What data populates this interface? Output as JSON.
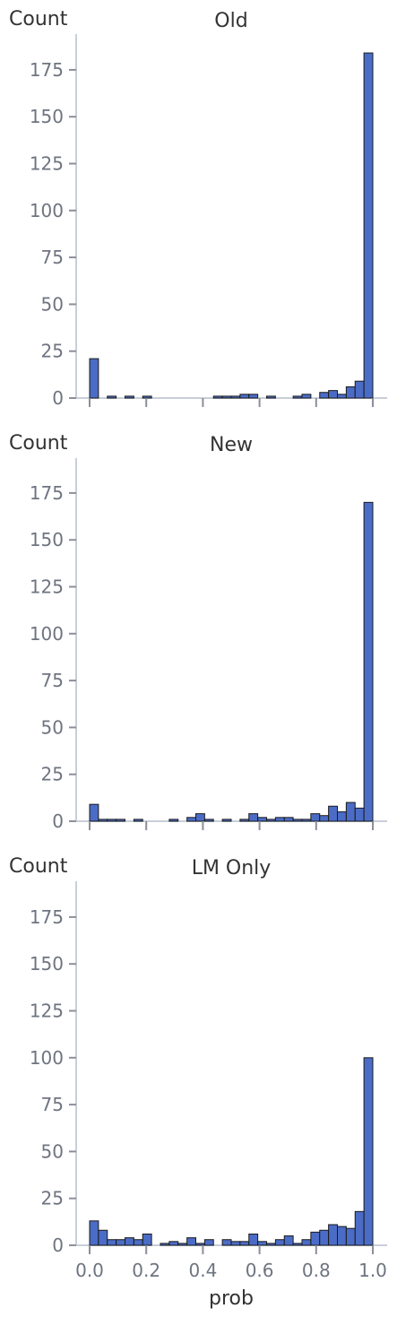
{
  "figure": {
    "colors": {
      "bar_fill": "#4b6cc6",
      "bar_edge": "#1a1a1a",
      "axis": "#c8ced8",
      "tick": "#8a8f9a",
      "tick_label": "#6e7480",
      "title": "#333333"
    }
  },
  "chart_data": [
    {
      "type": "bar",
      "title": "Old",
      "ylabel": "Count",
      "xlabel": "",
      "show_x_tick_labels": false,
      "bin_width": 0.03125,
      "x_range": [
        0,
        1
      ],
      "ylim": [
        0,
        192
      ],
      "y_ticks": [
        "0",
        "25",
        "50",
        "75",
        "100",
        "125",
        "150",
        "175"
      ],
      "x_ticks": [
        "0.0",
        "0.2",
        "0.4",
        "0.6",
        "0.8",
        "1.0"
      ],
      "values": [
        21,
        0,
        1,
        0,
        1,
        0,
        1,
        0,
        0,
        0,
        0,
        0,
        0,
        0,
        1,
        1,
        1,
        2,
        2,
        0,
        1,
        0,
        0,
        1,
        2,
        0,
        3,
        4,
        2,
        6,
        9,
        184
      ]
    },
    {
      "type": "bar",
      "title": "New",
      "ylabel": "Count",
      "xlabel": "",
      "show_x_tick_labels": false,
      "bin_width": 0.03125,
      "x_range": [
        0,
        1
      ],
      "ylim": [
        0,
        192
      ],
      "y_ticks": [
        "0",
        "25",
        "50",
        "75",
        "100",
        "125",
        "150",
        "175"
      ],
      "x_ticks": [
        "0.0",
        "0.2",
        "0.4",
        "0.6",
        "0.8",
        "1.0"
      ],
      "values": [
        9,
        1,
        1,
        1,
        0,
        1,
        0,
        0,
        0,
        1,
        0,
        2,
        4,
        1,
        0,
        1,
        0,
        1,
        4,
        2,
        1,
        2,
        2,
        1,
        1,
        4,
        3,
        8,
        5,
        10,
        7,
        170
      ]
    },
    {
      "type": "bar",
      "title": "LM Only",
      "ylabel": "Count",
      "xlabel": "prob",
      "show_x_tick_labels": true,
      "bin_width": 0.03125,
      "x_range": [
        0,
        1
      ],
      "ylim": [
        0,
        192
      ],
      "y_ticks": [
        "0",
        "25",
        "50",
        "75",
        "100",
        "125",
        "150",
        "175"
      ],
      "x_ticks": [
        "0.0",
        "0.2",
        "0.4",
        "0.6",
        "0.8",
        "1.0"
      ],
      "values": [
        13,
        8,
        3,
        3,
        4,
        3,
        6,
        0,
        1,
        2,
        1,
        4,
        1,
        3,
        0,
        3,
        2,
        2,
        6,
        2,
        1,
        3,
        5,
        1,
        3,
        7,
        8,
        11,
        10,
        9,
        18,
        100
      ]
    }
  ]
}
